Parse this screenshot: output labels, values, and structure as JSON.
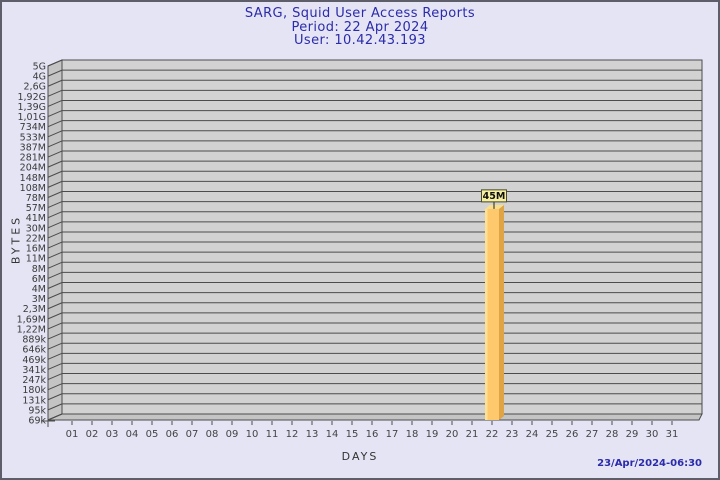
{
  "header": {
    "title": "SARG, Squid User Access Reports",
    "period": "Period: 22 Apr 2024",
    "user": "User: 10.42.43.193"
  },
  "footer": {
    "generated": "23/Apr/2024-06:30"
  },
  "colors": {
    "background": "#E4E4F4",
    "title_text": "#2B2BAB",
    "plot_face": "#D2D2D2",
    "plot_wall": "#C4C4C4",
    "gridline": "#4C4C4C",
    "bar_front": "#FDC96C",
    "bar_highlight": "#FFE195",
    "bar_side": "#DFA445",
    "bar_top": "#F8DF8C",
    "value_box_bg": "#F7F0A0",
    "value_box_border": "#4A4A2A"
  },
  "chart_data": {
    "type": "bar",
    "title": "SARG, Squid User Access Reports",
    "subtitle": "Period: 22 Apr 2024 — User: 10.42.43.193",
    "xlabel": "DAYS",
    "ylabel": "BYTES",
    "y_scale": "log",
    "legend": "none",
    "grid": "horizontal",
    "y_tick_labels": [
      "5G",
      "4G",
      "2,6G",
      "1,92G",
      "1,39G",
      "1,01G",
      "734M",
      "533M",
      "387M",
      "281M",
      "204M",
      "148M",
      "108M",
      "78M",
      "57M",
      "41M",
      "30M",
      "22M",
      "16M",
      "11M",
      "8M",
      "6M",
      "4M",
      "3M",
      "2,3M",
      "1,69M",
      "1,22M",
      "889k",
      "646k",
      "469k",
      "341k",
      "247k",
      "180k",
      "131k",
      "95k",
      "69k"
    ],
    "categories": [
      "01",
      "02",
      "03",
      "04",
      "05",
      "06",
      "07",
      "08",
      "09",
      "10",
      "11",
      "12",
      "13",
      "14",
      "15",
      "16",
      "17",
      "18",
      "19",
      "20",
      "21",
      "22",
      "23",
      "24",
      "25",
      "26",
      "27",
      "28",
      "29",
      "30",
      "31"
    ],
    "values": [
      0,
      0,
      0,
      0,
      0,
      0,
      0,
      0,
      0,
      0,
      0,
      0,
      0,
      0,
      0,
      0,
      0,
      0,
      0,
      0,
      0,
      45000000,
      0,
      0,
      0,
      0,
      0,
      0,
      0,
      0,
      0
    ],
    "bars": [
      {
        "category": "22",
        "value_label": "45M",
        "value_bytes": 45000000
      }
    ]
  }
}
